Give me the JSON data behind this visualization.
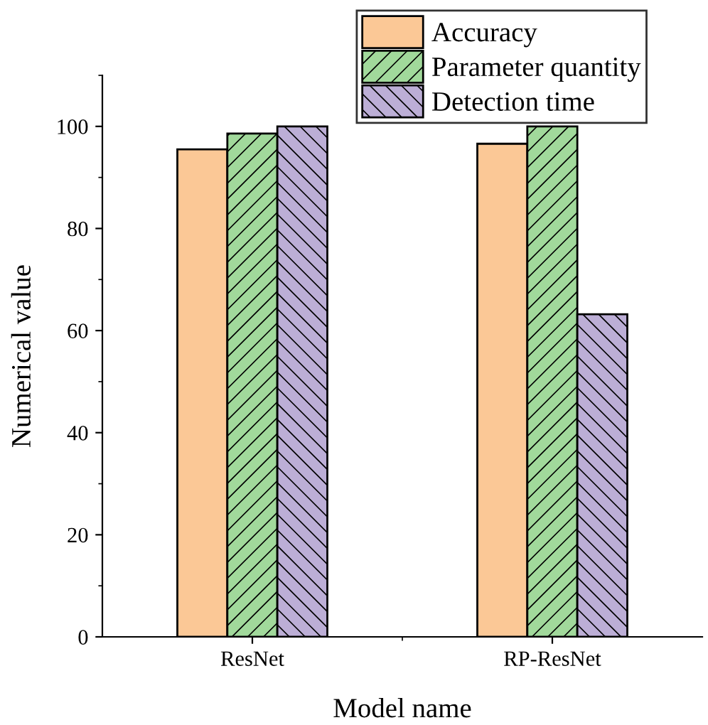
{
  "chart_data": {
    "type": "bar",
    "xlabel": "Model name",
    "ylabel": "Numerical value",
    "categories": [
      "ResNet",
      "RP-ResNet"
    ],
    "series": [
      {
        "name": "Accuracy",
        "color": "#fbc896",
        "values": [
          95.5,
          96.6
        ]
      },
      {
        "name": "Parameter quantity",
        "color": "#a1d99b",
        "values": [
          98.6,
          100
        ]
      },
      {
        "name": "Detection time",
        "color": "#bcaed6",
        "values": [
          100,
          63.2
        ]
      }
    ],
    "ylim": [
      0,
      110
    ],
    "yticks": [
      0,
      20,
      40,
      60,
      80,
      100
    ],
    "grid": false,
    "legend": "top right"
  }
}
